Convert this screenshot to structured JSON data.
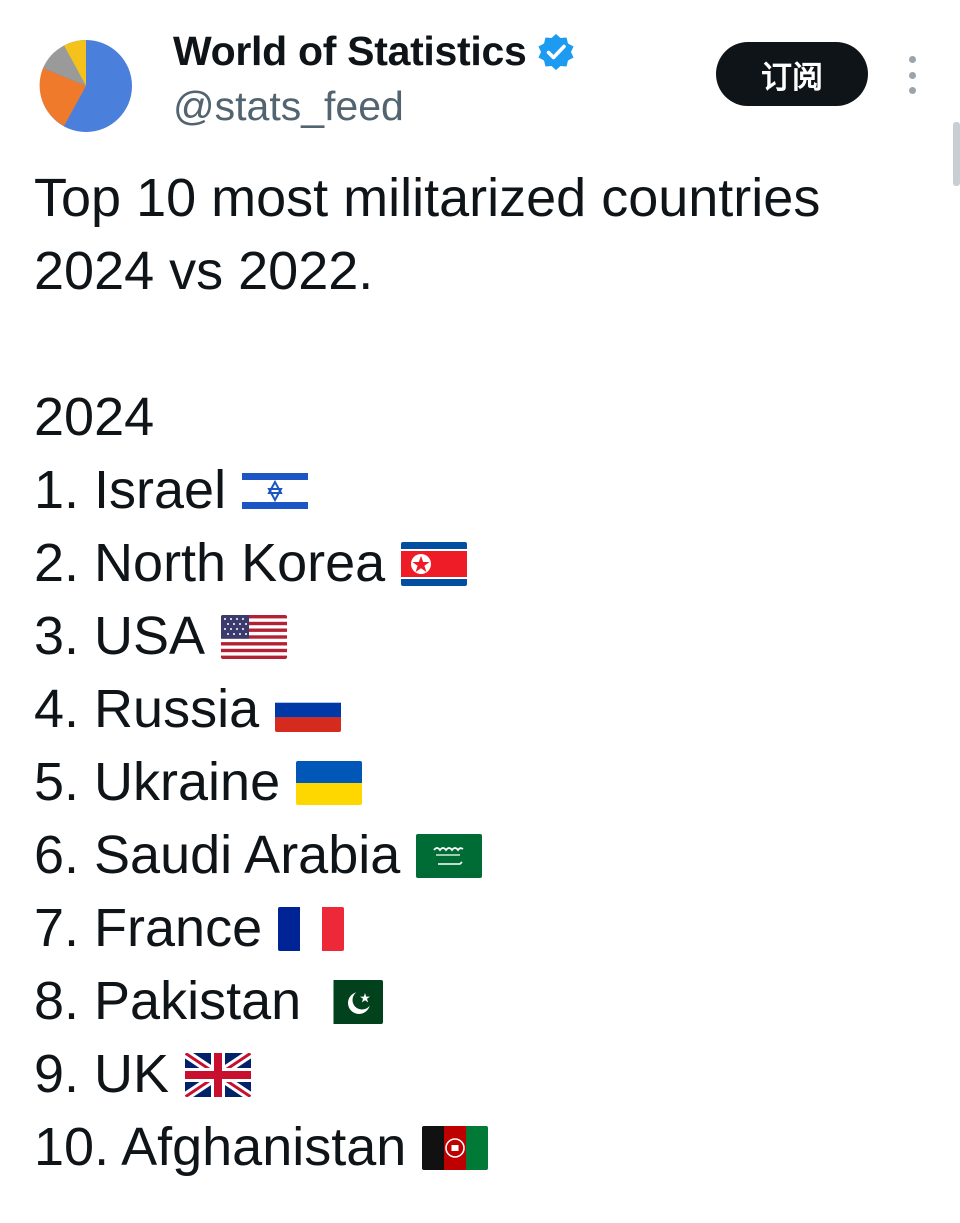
{
  "author": {
    "display_name": "World of Statistics",
    "handle": "@stats_feed",
    "verified": true,
    "avatar_colors": [
      "#4a7fdc",
      "#f07a2b",
      "#f5c21b",
      "#9a9a9a"
    ]
  },
  "actions": {
    "subscribe_label": "订阅",
    "more_icon": "more-vertical-icon"
  },
  "tweet": {
    "headline_line1": "Top 10 most militarized countries",
    "headline_line2": "2024 vs 2022.",
    "year_label": "2024",
    "ranking": [
      {
        "text": "1. Israel",
        "flag": "israel-flag-icon"
      },
      {
        "text": "2. North Korea",
        "flag": "north-korea-flag-icon"
      },
      {
        "text": "3. USA",
        "flag": "usa-flag-icon"
      },
      {
        "text": "4. Russia",
        "flag": "russia-flag-icon"
      },
      {
        "text": "5. Ukraine",
        "flag": "ukraine-flag-icon"
      },
      {
        "text": "6. Saudi Arabia",
        "flag": "saudi-arabia-flag-icon"
      },
      {
        "text": "7. France",
        "flag": "france-flag-icon"
      },
      {
        "text": "8. Pakistan",
        "flag": "pakistan-flag-icon"
      },
      {
        "text": "9. UK",
        "flag": "uk-flag-icon"
      },
      {
        "text": "10. Afghanistan",
        "flag": "afghanistan-flag-icon"
      }
    ]
  }
}
